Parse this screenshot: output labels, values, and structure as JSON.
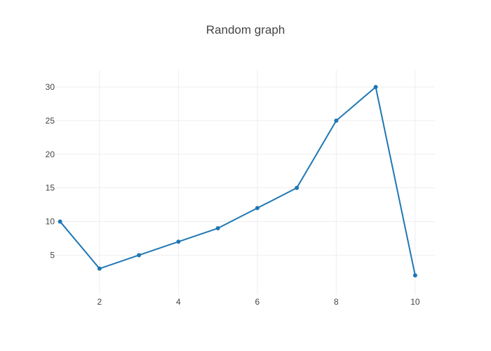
{
  "chart_data": {
    "type": "line",
    "title": "Random graph",
    "xlabel": "",
    "ylabel": "",
    "x": [
      1,
      2,
      3,
      4,
      5,
      6,
      7,
      8,
      9,
      10
    ],
    "series": [
      {
        "values": [
          10,
          3,
          5,
          7,
          9,
          12,
          15,
          25,
          30,
          2
        ],
        "color": "#1f77b4",
        "mode": "lines+markers"
      }
    ],
    "xlim": [
      0.9,
      10.5
    ],
    "ylim": [
      -0.9,
      32.5
    ],
    "xticks": [
      2,
      4,
      6,
      8,
      10
    ],
    "yticks": [
      5,
      10,
      15,
      20,
      25,
      30
    ],
    "grid": true,
    "legend": "none"
  }
}
